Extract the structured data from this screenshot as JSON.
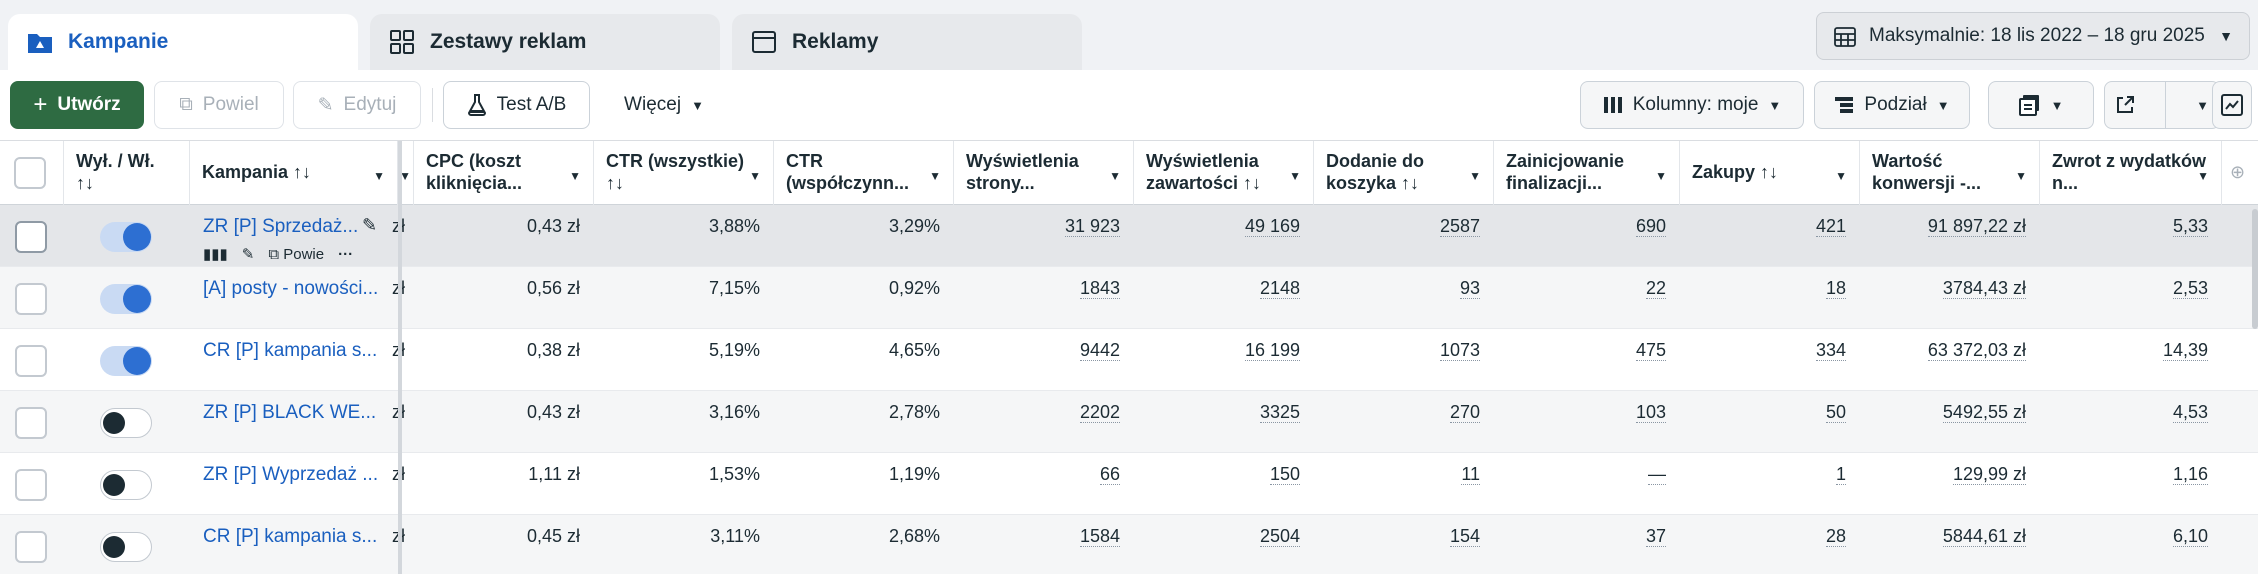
{
  "tabs": [
    {
      "label": "Kampanie",
      "icon": "folder-icon"
    },
    {
      "label": "Zestawy reklam",
      "icon": "grid-icon"
    },
    {
      "label": "Reklamy",
      "icon": "window-icon"
    }
  ],
  "date_range": "Maksymalnie: 18 lis 2022 – 18 gru 2025",
  "toolbar": {
    "create": "Utwórz",
    "duplicate": "Powiel",
    "edit": "Edytuj",
    "ab_test": "Test A/B",
    "more": "Więcej",
    "columns": "Kolumny: moje",
    "breakdown": "Podział"
  },
  "columns": {
    "onoff": "Wył. / Wł. ↑↓",
    "campaign": "Kampania ↑↓",
    "cpc": "CPC (koszt kliknięcia...",
    "ctr_all": "CTR (wszystkie) ↑↓",
    "ctr_link": "CTR (współczynn...",
    "page_views": "Wyświetlenia strony...",
    "content_views": "Wyświetlenia zawartości ↑↓",
    "add_to_cart": "Dodanie do koszyka ↑↓",
    "checkout": "Zainicjowanie finalizacji...",
    "purchases": "Zakupy ↑↓",
    "conv_value": "Wartość konwersji -...",
    "roas": "Zwrot z wydatków n..."
  },
  "row_actions": {
    "duplicate": "Powie"
  },
  "rows": [
    {
      "on": true,
      "name": "ZR [P] Sprzedaż...",
      "trunc": "zł",
      "cpc": "0,43 zł",
      "ctr_all": "3,88%",
      "ctr_link": "3,29%",
      "page_views": "31 923",
      "content_views": "49 169",
      "add_to_cart": "2587",
      "checkout": "690",
      "purchases": "421",
      "conv_value": "91 897,22 zł",
      "roas": "5,33"
    },
    {
      "on": true,
      "name": "[A] posty - nowości...",
      "trunc": "zł",
      "cpc": "0,56 zł",
      "ctr_all": "7,15%",
      "ctr_link": "0,92%",
      "page_views": "1843",
      "content_views": "2148",
      "add_to_cart": "93",
      "checkout": "22",
      "purchases": "18",
      "conv_value": "3784,43 zł",
      "roas": "2,53"
    },
    {
      "on": true,
      "name": "CR [P] kampania s...",
      "trunc": "zł",
      "cpc": "0,38 zł",
      "ctr_all": "5,19%",
      "ctr_link": "4,65%",
      "page_views": "9442",
      "content_views": "16 199",
      "add_to_cart": "1073",
      "checkout": "475",
      "purchases": "334",
      "conv_value": "63 372,03 zł",
      "roas": "14,39"
    },
    {
      "on": false,
      "name": "ZR [P] BLACK WE...",
      "trunc": "zł",
      "cpc": "0,43 zł",
      "ctr_all": "3,16%",
      "ctr_link": "2,78%",
      "page_views": "2202",
      "content_views": "3325",
      "add_to_cart": "270",
      "checkout": "103",
      "purchases": "50",
      "conv_value": "5492,55 zł",
      "roas": "4,53"
    },
    {
      "on": false,
      "name": "ZR [P] Wyprzedaż ...",
      "trunc": "zł",
      "cpc": "1,11 zł",
      "ctr_all": "1,53%",
      "ctr_link": "1,19%",
      "page_views": "66",
      "content_views": "150",
      "add_to_cart": "11",
      "checkout": "—",
      "purchases": "1",
      "conv_value": "129,99 zł",
      "roas": "1,16"
    },
    {
      "on": false,
      "name": "CR [P] kampania s...",
      "trunc": "zł",
      "cpc": "0,45 zł",
      "ctr_all": "3,11%",
      "ctr_link": "2,68%",
      "page_views": "1584",
      "content_views": "2504",
      "add_to_cart": "154",
      "checkout": "37",
      "purchases": "28",
      "conv_value": "5844,61 zł",
      "roas": "6,10"
    }
  ]
}
